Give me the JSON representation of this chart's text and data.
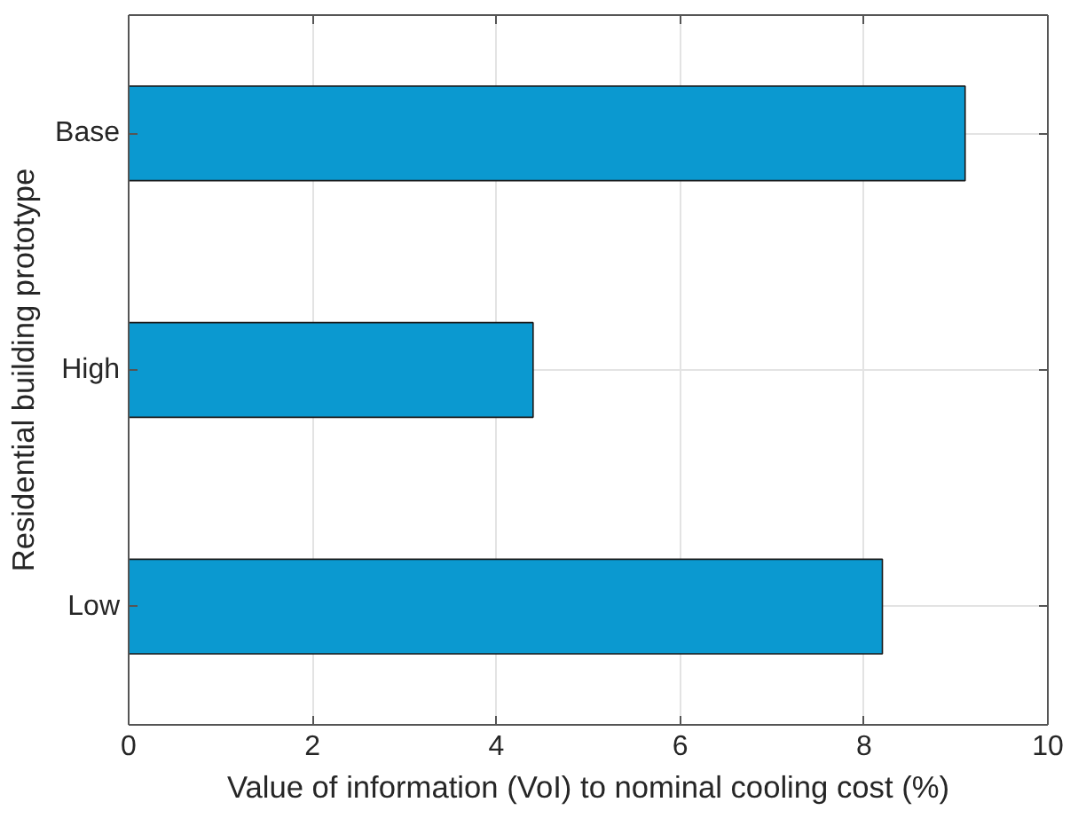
{
  "chart_data": {
    "type": "bar",
    "orientation": "horizontal",
    "categories": [
      "Base",
      "High",
      "Low"
    ],
    "values": [
      9.1,
      4.4,
      8.2
    ],
    "color": "#0b99d0",
    "xlim": [
      0,
      10
    ],
    "xticks": [
      0,
      2,
      4,
      6,
      8,
      10
    ],
    "grid": true,
    "xlabel": "Value of information (VoI) to nominal cooling cost (%)",
    "ylabel": "Residential building prototype"
  }
}
